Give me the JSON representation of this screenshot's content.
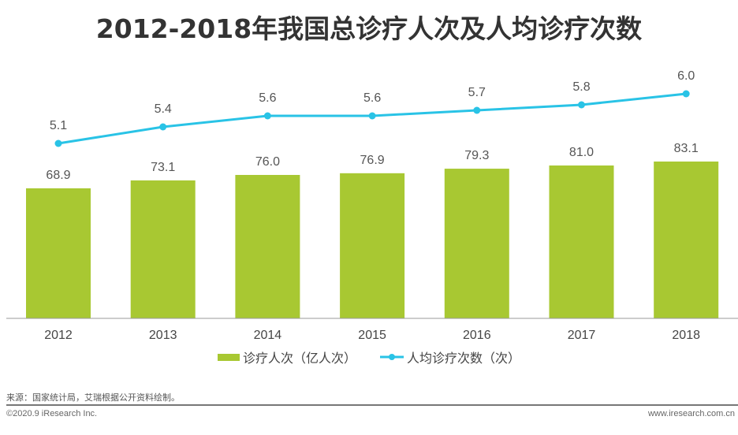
{
  "chart_data": {
    "type": "bar+line",
    "title": "2012-2018年我国总诊疗人次及人均诊疗次数",
    "categories": [
      "2012",
      "2013",
      "2014",
      "2015",
      "2016",
      "2017",
      "2018"
    ],
    "series": [
      {
        "name": "诊疗人次（亿人次）",
        "type": "bar",
        "values": [
          68.9,
          73.1,
          76.0,
          76.9,
          79.3,
          81.0,
          83.1
        ],
        "labels": [
          "68.9",
          "73.1",
          "76.0",
          "76.9",
          "79.3",
          "81.0",
          "83.1"
        ],
        "color": "#a8c832"
      },
      {
        "name": "人均诊疗次数（次）",
        "type": "line",
        "values": [
          5.1,
          5.4,
          5.6,
          5.6,
          5.7,
          5.8,
          6.0
        ],
        "labels": [
          "5.1",
          "5.4",
          "5.6",
          "5.6",
          "5.7",
          "5.8",
          "6.0"
        ],
        "color": "#29c3e6"
      }
    ],
    "grid": false,
    "legend_position": "bottom"
  },
  "footer": {
    "source": "来源：国家统计局，艾瑞根据公开资料绘制。",
    "copyright": "©2020.9 iResearch Inc.",
    "site": "www.iresearch.com.cn"
  }
}
